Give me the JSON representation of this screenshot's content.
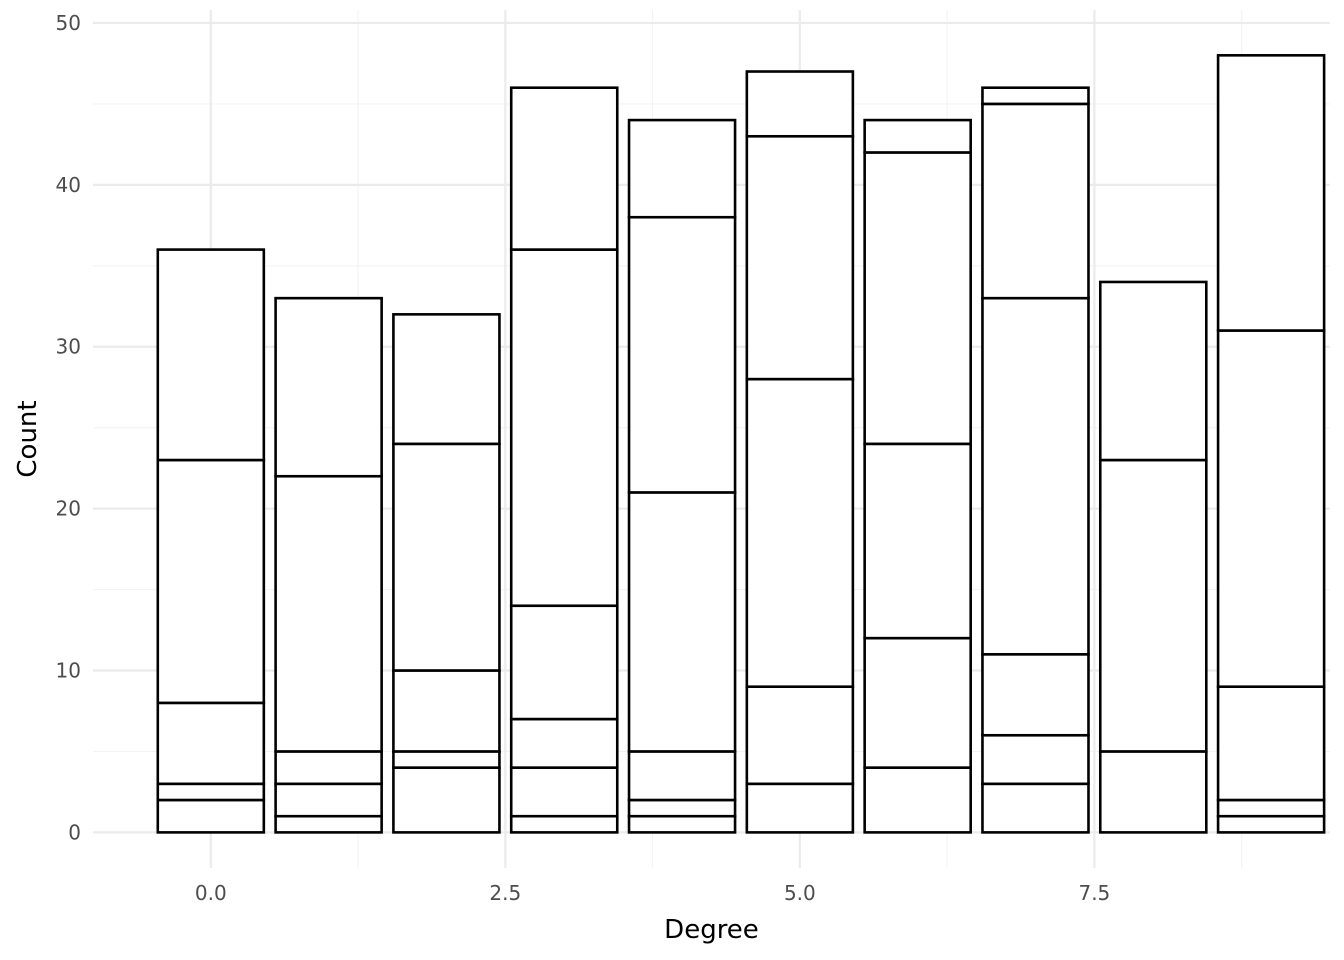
{
  "chart_data": {
    "type": "bar",
    "stacked": true,
    "title": "",
    "xlabel": "Degree",
    "ylabel": "Count",
    "x": [
      0,
      1,
      2,
      3,
      4,
      5,
      6,
      7,
      8,
      9
    ],
    "xlim": [
      -1.0,
      9.5
    ],
    "ylim": [
      -2.2,
      50.8
    ],
    "x_ticks": [
      0,
      2.5,
      5,
      7.5
    ],
    "x_tick_labels": [
      "0.0",
      "2.5",
      "5.0",
      "7.5"
    ],
    "y_ticks": [
      0,
      10,
      20,
      30,
      40,
      50
    ],
    "y_tick_labels": [
      "0",
      "10",
      "20",
      "30",
      "40",
      "50"
    ],
    "bar_width": 0.9,
    "grid": true,
    "legend": "none",
    "fill_color": "#ffffff",
    "outline_color": "#000000",
    "segment_boundaries": [
      [
        2,
        3,
        8,
        23,
        36
      ],
      [
        1,
        3,
        5,
        22,
        33
      ],
      [
        4,
        5,
        10,
        24,
        32
      ],
      [
        1,
        4,
        7,
        14,
        36,
        46
      ],
      [
        1,
        2,
        5,
        21,
        38,
        44
      ],
      [
        3,
        9,
        28,
        43,
        47
      ],
      [
        4,
        12,
        24,
        42,
        44
      ],
      [
        3,
        6,
        11,
        33,
        45,
        46
      ],
      [
        5,
        23,
        34
      ],
      [
        1,
        2,
        9,
        31,
        48
      ]
    ],
    "totals": [
      36,
      33,
      32,
      46,
      44,
      47,
      44,
      46,
      34,
      48
    ]
  }
}
